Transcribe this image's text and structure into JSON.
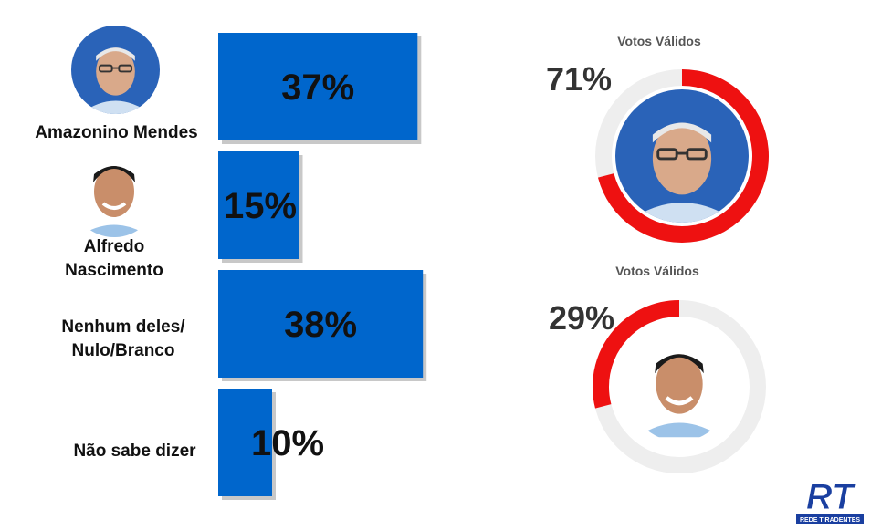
{
  "chart_data": [
    {
      "type": "bar",
      "orientation": "horizontal",
      "categories": [
        "Amazonino Mendes",
        "Alfredo Nascimento",
        "Nenhum deles/ Nulo/Branco",
        "Não sabe dizer"
      ],
      "values": [
        37,
        15,
        38,
        10
      ],
      "value_labels": [
        "37%",
        "15%",
        "38%",
        "10%"
      ],
      "unit": "%",
      "bar_color": "#0066CC",
      "xlim": [
        0,
        40
      ]
    },
    {
      "type": "pie",
      "style": "donut",
      "title": "Votos Válidos",
      "slices": [
        {
          "label": "Amazonino Mendes",
          "value": 71,
          "color": "#EE1111"
        },
        {
          "label": "",
          "value": 29,
          "color": "#EEEEEE"
        }
      ],
      "value_label": "71%"
    },
    {
      "type": "pie",
      "style": "donut",
      "title": "Votos Válidos",
      "slices": [
        {
          "label": "Alfredo Nascimento",
          "value": 29,
          "color": "#EE1111"
        },
        {
          "label": "",
          "value": 71,
          "color": "#EEEEEE"
        }
      ],
      "value_label": "29%"
    }
  ],
  "labels": {
    "candidate_1": "Amazonino Mendes",
    "candidate_2_line1": "Alfredo",
    "candidate_2_line2": "Nascimento",
    "option_3_line1": "Nenhum deles/",
    "option_3_line2": "Nulo/Branco",
    "option_4": "Não sabe dizer"
  },
  "logo": {
    "text": "RT",
    "caption": "REDE TIRADENTES",
    "color": "#1a3fa0"
  }
}
